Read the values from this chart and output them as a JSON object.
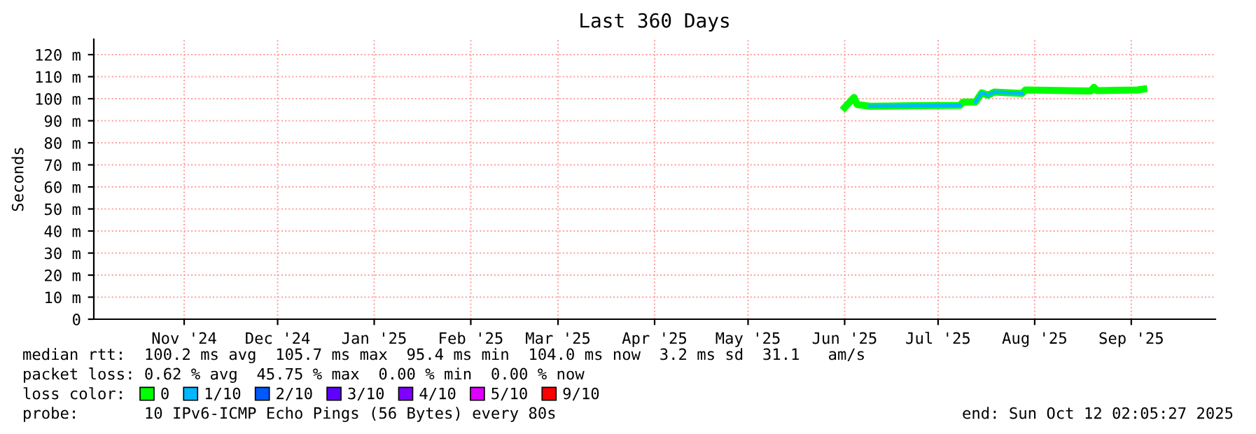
{
  "chart_data": {
    "type": "line",
    "title": "Last 360 Days",
    "ylabel": "Seconds",
    "x": [
      "2025-06-15",
      "2025-06-18",
      "2025-06-19",
      "2025-06-23",
      "2025-07-07",
      "2025-07-22",
      "2025-07-23",
      "2025-07-27",
      "2025-07-29",
      "2025-07-31",
      "2025-08-02",
      "2025-08-11",
      "2025-08-12",
      "2025-09-02",
      "2025-09-03",
      "2025-09-04",
      "2025-09-17",
      "2025-09-19"
    ],
    "series": [
      {
        "name": "0",
        "color": "#00ff00",
        "values": [
          96,
          100.6,
          97.4,
          96.6,
          96.8,
          97,
          98.5,
          98.5,
          102.7,
          101.6,
          103,
          102.4,
          104,
          103.5,
          105.2,
          103.7,
          104,
          104.4
        ]
      },
      {
        "name": "1/10",
        "color": "#00b8ff",
        "values": [
          null,
          null,
          null,
          96.6,
          96.8,
          97,
          null,
          98.5,
          102.7,
          101.6,
          103,
          102.4,
          null,
          null,
          null,
          null,
          null,
          null
        ]
      },
      {
        "name": "2/10",
        "color": "#0059ff",
        "values": [
          null,
          null,
          null,
          null,
          null,
          null,
          null,
          null,
          null,
          null,
          null,
          null,
          null,
          null,
          null,
          null,
          null,
          null
        ]
      },
      {
        "name": "3/10",
        "color": "#5e00ff",
        "values": [
          null,
          null,
          null,
          null,
          null,
          null,
          null,
          null,
          null,
          null,
          null,
          null,
          null,
          null,
          null,
          null,
          null,
          null
        ]
      },
      {
        "name": "4/10",
        "color": "#7e00ff",
        "values": [
          null,
          null,
          null,
          null,
          null,
          null,
          null,
          null,
          null,
          null,
          null,
          null,
          null,
          null,
          null,
          null,
          null,
          null
        ]
      },
      {
        "name": "5/10",
        "color": "#dd00ff",
        "values": [
          null,
          null,
          null,
          null,
          null,
          null,
          null,
          null,
          null,
          null,
          null,
          null,
          null,
          null,
          null,
          null,
          null,
          null
        ]
      },
      {
        "name": "9/10",
        "color": "#ff0000",
        "values": [
          null,
          null,
          null,
          null,
          null,
          null,
          null,
          null,
          null,
          null,
          null,
          null,
          null,
          null,
          null,
          null,
          null,
          null
        ]
      }
    ],
    "legend_title": "loss color:",
    "legend": "bottom",
    "xlim": [
      "2024-10-17",
      "2025-10-12"
    ],
    "xticks": [
      {
        "value": "2024-11-15",
        "label": "Nov '24"
      },
      {
        "value": "2024-12-15",
        "label": "Dec '24"
      },
      {
        "value": "2025-01-15",
        "label": "Jan '25"
      },
      {
        "value": "2025-02-15",
        "label": "Feb '25"
      },
      {
        "value": "2025-03-15",
        "label": "Mar '25"
      },
      {
        "value": "2025-04-15",
        "label": "Apr '25"
      },
      {
        "value": "2025-05-15",
        "label": "May '25"
      },
      {
        "value": "2025-06-15",
        "label": "Jun '25"
      },
      {
        "value": "2025-07-15",
        "label": "Jul '25"
      },
      {
        "value": "2025-08-15",
        "label": "Aug '25"
      },
      {
        "value": "2025-09-15",
        "label": "Sep '25"
      }
    ],
    "ylim": [
      0,
      127
    ],
    "yticks": [
      0,
      {
        "value": 10,
        "label": "10 m"
      },
      {
        "value": 20,
        "label": "20 m"
      },
      {
        "value": 30,
        "label": "30 m"
      },
      {
        "value": 40,
        "label": "40 m"
      },
      {
        "value": 50,
        "label": "50 m"
      },
      {
        "value": 60,
        "label": "60 m"
      },
      {
        "value": 70,
        "label": "70 m"
      },
      {
        "value": 80,
        "label": "80 m"
      },
      {
        "value": 90,
        "label": "90 m"
      },
      {
        "value": 100,
        "label": "100 m"
      },
      {
        "value": 110,
        "label": "110 m"
      },
      {
        "value": 120,
        "label": "120 m"
      }
    ],
    "grid": true,
    "annotations": [
      "median rtt:  100.2 ms avg  105.7 ms max  95.4 ms min  104.0 ms now  3.2 ms sd  31.1   am/s",
      "packet loss: 0.62 % avg  45.75 % max  0.00 % min  0.00 % now",
      "probe:       10 IPv6-ICMP Echo Pings (56 Bytes) every 80s",
      "end: Sun Oct 12 02:05:27 2025"
    ]
  }
}
